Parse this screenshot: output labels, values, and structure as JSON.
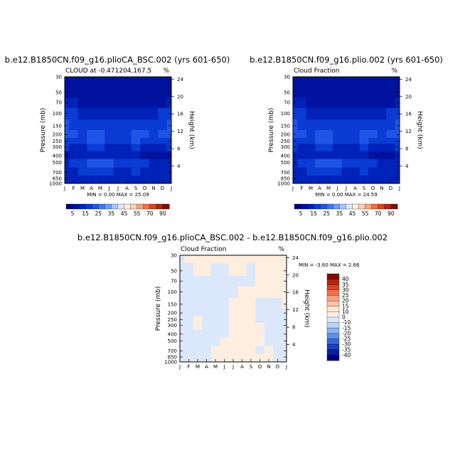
{
  "chart_data": [
    {
      "type": "heatmap",
      "title": "b.e12.B1850CN.f09_g16.plioCA_BSC.002 (yrs 601-650)",
      "subtitle": "CLOUD at -0.471204,167.5",
      "unit": "%",
      "stats": "MIN =    0.00 MAX =   25.09",
      "ylabel": "Pressure (mb)",
      "ylabel_right": "Height (km)",
      "months": [
        "J",
        "F",
        "M",
        "A",
        "M",
        "J",
        "J",
        "A",
        "S",
        "O",
        "N",
        "D",
        "J"
      ],
      "pressure_ticks": [
        "30",
        "50",
        "70",
        "100",
        "150",
        "200",
        "250",
        "300",
        "400",
        "500",
        "700",
        "850",
        "1000"
      ],
      "height_ticks": [
        "24",
        "20",
        "16",
        "12",
        "8",
        "4"
      ],
      "colorbar_labels": [
        "5",
        "15",
        "25",
        "35",
        "45",
        "55",
        "70",
        "90"
      ],
      "colors": [
        "#00007f",
        "#00129e",
        "#0022b8",
        "#0a3bd3",
        "#1f55e6",
        "#3d74f0",
        "#6c9bf5",
        "#a7c6fa",
        "#dfeafc",
        "#fdeee0",
        "#fbd0b3",
        "#f6a27e",
        "#ee7148",
        "#d94421",
        "#b12410",
        "#7f0d05"
      ],
      "bands": [
        {
          "p": 30,
          "v": [
            5,
            5,
            5,
            5,
            5,
            5,
            5,
            5,
            5,
            5,
            5,
            5,
            5
          ]
        },
        {
          "p": 50,
          "v": [
            5,
            5,
            5,
            5,
            5,
            5,
            5,
            5,
            5,
            5,
            5,
            5,
            5
          ]
        },
        {
          "p": 70,
          "v": [
            11,
            10,
            8,
            6,
            6,
            6,
            6,
            6,
            6,
            6,
            6,
            8,
            11
          ]
        },
        {
          "p": 100,
          "v": [
            17,
            16,
            14,
            13,
            13,
            13,
            13,
            13,
            13,
            13,
            14,
            16,
            17
          ]
        },
        {
          "p": 150,
          "v": [
            20,
            19,
            16,
            17,
            16,
            16,
            17,
            17,
            17,
            16,
            17,
            19,
            20
          ]
        },
        {
          "p": 200,
          "v": [
            22,
            20,
            18,
            22,
            21,
            19,
            17,
            19,
            21,
            20,
            18,
            20,
            22
          ]
        },
        {
          "p": 250,
          "v": [
            19,
            18,
            17,
            21,
            20,
            18,
            16,
            18,
            20,
            18,
            17,
            18,
            19
          ]
        },
        {
          "p": 300,
          "v": [
            15,
            14,
            13,
            16,
            16,
            14,
            12,
            14,
            15,
            14,
            13,
            14,
            15
          ]
        },
        {
          "p": 400,
          "v": [
            9,
            11,
            13,
            12,
            13,
            12,
            12,
            12,
            10,
            6,
            6,
            7,
            9
          ]
        },
        {
          "p": 500,
          "v": [
            14,
            15,
            18,
            21,
            22,
            20,
            16,
            17,
            16,
            15,
            14,
            14,
            14
          ]
        },
        {
          "p": 700,
          "v": [
            14,
            14,
            15,
            17,
            18,
            16,
            14,
            14,
            15,
            12,
            11,
            13,
            14
          ]
        },
        {
          "p": 850,
          "v": [
            13,
            13,
            14,
            14,
            14,
            14,
            14,
            14,
            14,
            13,
            13,
            13,
            13
          ]
        },
        {
          "p": 1000,
          "v": [
            12,
            12,
            12,
            12,
            12,
            12,
            12,
            12,
            12,
            12,
            12,
            12,
            12
          ]
        }
      ]
    },
    {
      "type": "heatmap",
      "title": "b.e12.B1850CN.f09_g16.plio.002 (yrs 601-650)",
      "subtitle": "Cloud Fraction",
      "unit": "%",
      "stats": "MIN =    0.00 MAX =   24.59",
      "ylabel": "Pressure (mb)",
      "ylabel_right": "Height (km)",
      "months": [
        "J",
        "F",
        "M",
        "A",
        "M",
        "J",
        "J",
        "A",
        "S",
        "O",
        "N",
        "D",
        "J"
      ],
      "pressure_ticks": [
        "30",
        "50",
        "70",
        "100",
        "150",
        "200",
        "250",
        "300",
        "400",
        "500",
        "700",
        "850",
        "1000"
      ],
      "height_ticks": [
        "24",
        "20",
        "16",
        "12",
        "8",
        "4"
      ],
      "colorbar_labels": [
        "5",
        "15",
        "25",
        "35",
        "45",
        "55",
        "70",
        "90"
      ],
      "colors": [
        "#00007f",
        "#00129e",
        "#0022b8",
        "#0a3bd3",
        "#1f55e6",
        "#3d74f0",
        "#6c9bf5",
        "#a7c6fa",
        "#dfeafc",
        "#fdeee0",
        "#fbd0b3",
        "#f6a27e",
        "#ee7148",
        "#d94421",
        "#b12410",
        "#7f0d05"
      ],
      "bands": [
        {
          "p": 30,
          "v": [
            5,
            5,
            5,
            5,
            5,
            5,
            5,
            5,
            5,
            5,
            5,
            5,
            5
          ]
        },
        {
          "p": 50,
          "v": [
            5,
            5,
            5,
            5,
            5,
            5,
            5,
            5,
            5,
            5,
            5,
            5,
            5
          ]
        },
        {
          "p": 70,
          "v": [
            11,
            10,
            8,
            6,
            6,
            6,
            6,
            6,
            6,
            6,
            6,
            8,
            11
          ]
        },
        {
          "p": 100,
          "v": [
            17,
            16,
            14,
            13,
            13,
            13,
            13,
            13,
            13,
            13,
            14,
            16,
            17
          ]
        },
        {
          "p": 150,
          "v": [
            20,
            19,
            16,
            17,
            17,
            16,
            17,
            17,
            17,
            16,
            17,
            19,
            20
          ]
        },
        {
          "p": 200,
          "v": [
            21,
            20,
            18,
            21,
            21,
            19,
            17,
            19,
            21,
            20,
            18,
            20,
            21
          ]
        },
        {
          "p": 250,
          "v": [
            19,
            18,
            17,
            21,
            20,
            18,
            16,
            18,
            20,
            18,
            17,
            18,
            19
          ]
        },
        {
          "p": 300,
          "v": [
            15,
            14,
            13,
            16,
            16,
            14,
            12,
            14,
            15,
            14,
            13,
            14,
            15
          ]
        },
        {
          "p": 400,
          "v": [
            10,
            11,
            13,
            12,
            13,
            12,
            12,
            12,
            10,
            6,
            6,
            7,
            10
          ]
        },
        {
          "p": 500,
          "v": [
            14,
            15,
            18,
            20,
            22,
            20,
            16,
            17,
            16,
            15,
            14,
            14,
            14
          ]
        },
        {
          "p": 700,
          "v": [
            14,
            14,
            15,
            17,
            18,
            16,
            14,
            14,
            15,
            13,
            12,
            13,
            14
          ]
        },
        {
          "p": 850,
          "v": [
            13,
            13,
            14,
            14,
            14,
            14,
            14,
            14,
            14,
            13,
            13,
            13,
            13
          ]
        },
        {
          "p": 1000,
          "v": [
            12,
            12,
            12,
            12,
            12,
            12,
            12,
            12,
            12,
            12,
            12,
            12,
            12
          ]
        }
      ]
    },
    {
      "type": "heatmap",
      "title": "b.e12.B1850CN.f09_g16.plioCA_BSC.002 - b.e12.B1850CN.f09_g16.plio.002",
      "subtitle": "Cloud Fraction",
      "unit": "%",
      "stats": "MIN =   -3.60 MAX =    2.66",
      "ylabel": "Pressure (mb)",
      "ylabel_right": "Height (km)",
      "months": [
        "J",
        "F",
        "M",
        "A",
        "M",
        "J",
        "J",
        "A",
        "S",
        "O",
        "N",
        "D",
        "J"
      ],
      "pressure_ticks": [
        "30",
        "50",
        "70",
        "100",
        "150",
        "200",
        "250",
        "300",
        "400",
        "500",
        "700",
        "850",
        "1000"
      ],
      "height_ticks": [
        "24",
        "20",
        "16",
        "12",
        "8",
        "4"
      ],
      "colorbar_labels": [
        "40",
        "35",
        "30",
        "25",
        "20",
        "15",
        "10",
        "0",
        "-10",
        "-15",
        "-20",
        "-25",
        "-30",
        "-35",
        "-40"
      ],
      "colorbar_colors": [
        "#7f0d05",
        "#b12410",
        "#d94421",
        "#ee7148",
        "#f6a27e",
        "#fbc4a5",
        "#fde6d6",
        "#fdeee0",
        "#dbe8fb",
        "#b9d3f8",
        "#8fb4f2",
        "#5f8de9",
        "#3866da",
        "#1b40c0",
        "#0b1f9c",
        "#00007f"
      ],
      "bands": [
        {
          "p": 30,
          "v": [
            -1,
            1,
            1,
            1,
            1,
            1,
            1,
            1,
            1,
            1,
            1,
            1,
            1
          ]
        },
        {
          "p": 50,
          "v": [
            -1,
            -1,
            1,
            1,
            -1,
            -1,
            1,
            1,
            -1,
            1,
            1,
            1,
            1
          ]
        },
        {
          "p": 70,
          "v": [
            -1,
            -1,
            -1,
            -1,
            -1,
            -1,
            -1,
            -1,
            -1,
            1,
            1,
            1,
            1
          ]
        },
        {
          "p": 100,
          "v": [
            -1,
            -1,
            -1,
            -1,
            -1,
            -1,
            -1,
            1,
            1,
            1,
            1,
            1,
            1
          ]
        },
        {
          "p": 150,
          "v": [
            -1,
            -1,
            -1,
            -1,
            -1,
            -1,
            1,
            1,
            1,
            -1,
            -1,
            -1,
            1
          ]
        },
        {
          "p": 200,
          "v": [
            -1,
            -1,
            -1,
            -1,
            -1,
            -1,
            1,
            1,
            1,
            -1,
            -1,
            -1,
            -1
          ]
        },
        {
          "p": 250,
          "v": [
            -1,
            -1,
            1,
            -1,
            -1,
            -1,
            1,
            1,
            1,
            -1,
            -1,
            -1,
            -1
          ]
        },
        {
          "p": 300,
          "v": [
            -1,
            -1,
            1,
            -1,
            -1,
            -1,
            1,
            1,
            1,
            1,
            -1,
            -1,
            -1
          ]
        },
        {
          "p": 400,
          "v": [
            -1,
            -1,
            -1,
            -1,
            -1,
            -1,
            1,
            1,
            1,
            1,
            -1,
            -1,
            -1
          ]
        },
        {
          "p": 500,
          "v": [
            -1,
            -1,
            -1,
            -1,
            -1,
            1,
            1,
            1,
            1,
            1,
            -1,
            -1,
            -1
          ]
        },
        {
          "p": 700,
          "v": [
            -1,
            -1,
            -1,
            -1,
            1,
            1,
            1,
            1,
            1,
            -1,
            1,
            -1,
            -1
          ]
        },
        {
          "p": 850,
          "v": [
            -1,
            -1,
            -1,
            -1,
            1,
            1,
            1,
            1,
            1,
            1,
            1,
            -1,
            -1
          ]
        },
        {
          "p": 1000,
          "v": [
            -1,
            -1,
            -1,
            -1,
            1,
            1,
            1,
            1,
            1,
            1,
            1,
            -1,
            -1
          ]
        }
      ]
    }
  ]
}
